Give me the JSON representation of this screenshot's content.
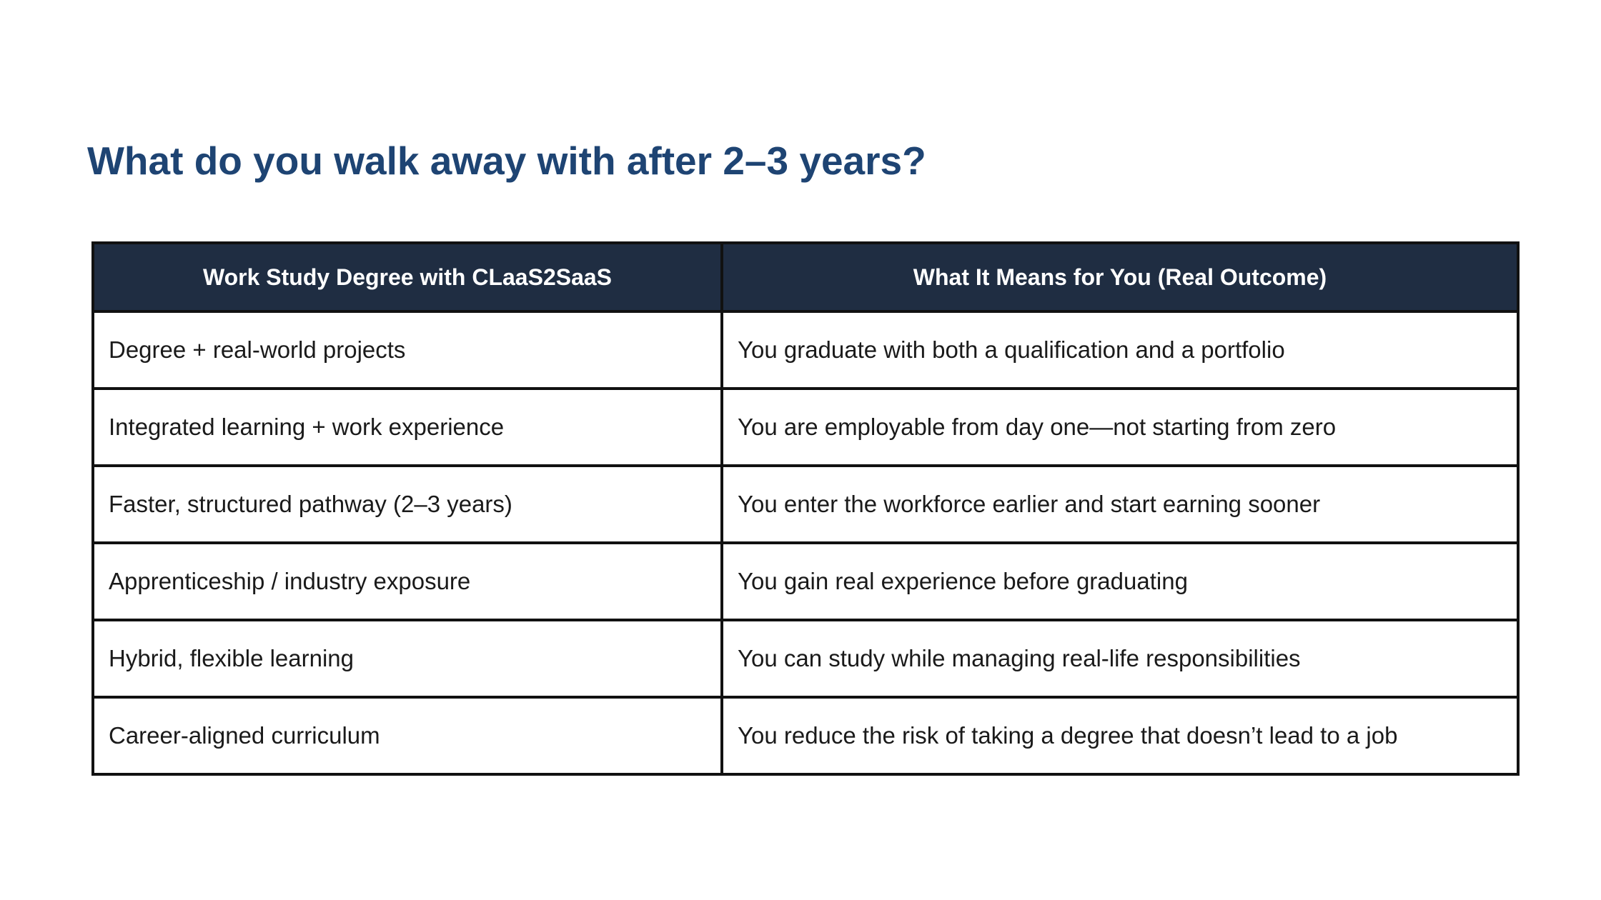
{
  "title": "What do you walk away with after 2–3 years?",
  "table": {
    "headers": [
      "Work Study Degree with CLaaS2SaaS",
      "What It Means for You (Real Outcome)"
    ],
    "rows": [
      [
        "Degree + real-world projects",
        "You graduate with both a qualification and a portfolio"
      ],
      [
        "Integrated learning + work experience",
        "You are employable from day one—not starting from zero"
      ],
      [
        "Faster, structured pathway (2–3 years)",
        "You enter the workforce earlier and start earning sooner"
      ],
      [
        "Apprenticeship / industry exposure",
        "You gain real experience before graduating"
      ],
      [
        "Hybrid, flexible learning",
        "You can study while managing real-life responsibilities"
      ],
      [
        "Career-aligned curriculum",
        "You reduce the risk of taking a degree that doesn’t lead to a job"
      ]
    ]
  },
  "colors": {
    "title": "#1e4473",
    "header_bg": "#1f2d42",
    "header_text": "#ffffff",
    "border": "#111111"
  }
}
